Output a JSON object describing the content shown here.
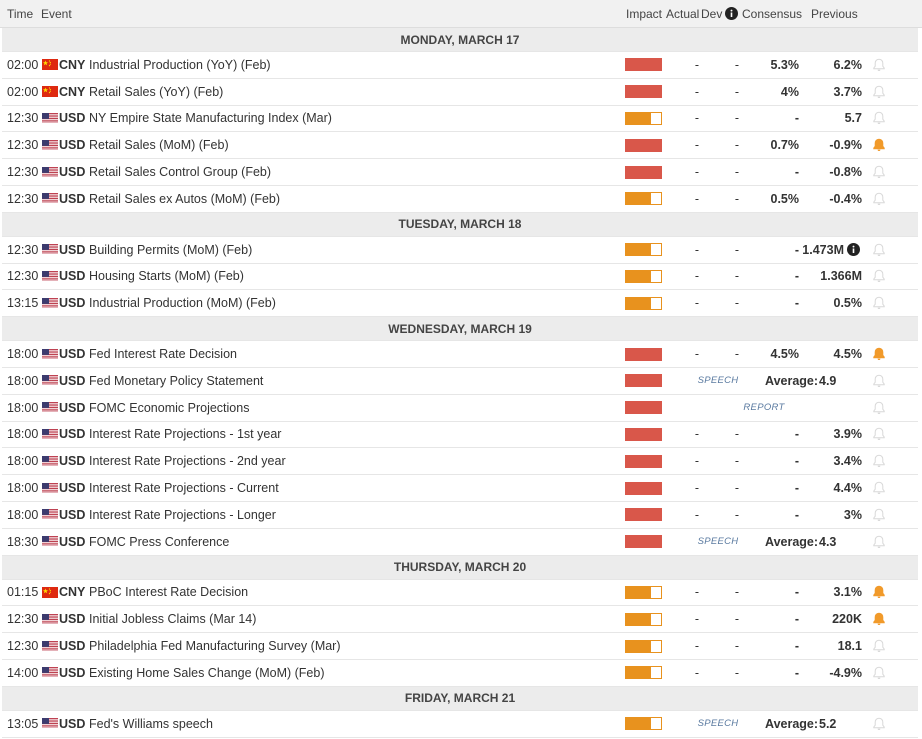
{
  "header": {
    "columns": [
      "Time",
      "Event",
      "Impact",
      "Actual",
      "Dev",
      "Consensus",
      "Previous"
    ]
  },
  "days": [
    {
      "title": "MONDAY, MARCH 17",
      "rows": [
        {
          "time": "02:00",
          "flag": "china",
          "currency": "CNY",
          "event": "Industrial Production (YoY) (Feb)",
          "impact": "high",
          "actual": "-",
          "dev": "-",
          "consensus": "5.3%",
          "previous": "6.2%",
          "alert": false
        },
        {
          "time": "02:00",
          "flag": "china",
          "currency": "CNY",
          "event": "Retail Sales (YoY) (Feb)",
          "impact": "high",
          "actual": "-",
          "dev": "-",
          "consensus": "4%",
          "previous": "3.7%",
          "alert": false
        },
        {
          "time": "12:30",
          "flag": "usa",
          "currency": "USD",
          "event": "NY Empire State Manufacturing Index (Mar)",
          "impact": "medium",
          "actual": "-",
          "dev": "-",
          "consensus": "-",
          "previous": "5.7",
          "alert": false
        },
        {
          "time": "12:30",
          "flag": "usa",
          "currency": "USD",
          "event": "Retail Sales (MoM) (Feb)",
          "impact": "high",
          "actual": "-",
          "dev": "-",
          "consensus": "0.7%",
          "previous": "-0.9%",
          "alert": true
        },
        {
          "time": "12:30",
          "flag": "usa",
          "currency": "USD",
          "event": "Retail Sales Control Group (Feb)",
          "impact": "high",
          "actual": "-",
          "dev": "-",
          "consensus": "-",
          "previous": "-0.8%",
          "alert": false
        },
        {
          "time": "12:30",
          "flag": "usa",
          "currency": "USD",
          "event": "Retail Sales ex Autos (MoM) (Feb)",
          "impact": "medium",
          "actual": "-",
          "dev": "-",
          "consensus": "0.5%",
          "previous": "-0.4%",
          "alert": false
        }
      ]
    },
    {
      "title": "TUESDAY, MARCH 18",
      "rows": [
        {
          "time": "12:30",
          "flag": "usa",
          "currency": "USD",
          "event": "Building Permits (MoM) (Feb)",
          "impact": "medium",
          "actual": "-",
          "dev": "-",
          "consensus": "-",
          "previous": "1.473M",
          "previous_info": true,
          "alert": false
        },
        {
          "time": "12:30",
          "flag": "usa",
          "currency": "USD",
          "event": "Housing Starts (MoM) (Feb)",
          "impact": "medium",
          "actual": "-",
          "dev": "-",
          "consensus": "-",
          "previous": "1.366M",
          "alert": false
        },
        {
          "time": "13:15",
          "flag": "usa",
          "currency": "USD",
          "event": "Industrial Production (MoM) (Feb)",
          "impact": "medium",
          "actual": "-",
          "dev": "-",
          "consensus": "-",
          "previous": "0.5%",
          "alert": false
        }
      ]
    },
    {
      "title": "WEDNESDAY, MARCH 19",
      "rows": [
        {
          "time": "18:00",
          "flag": "usa",
          "currency": "USD",
          "event": "Fed Interest Rate Decision",
          "impact": "high",
          "actual": "-",
          "dev": "-",
          "consensus": "4.5%",
          "previous": "4.5%",
          "alert": true
        },
        {
          "time": "18:00",
          "flag": "usa",
          "currency": "USD",
          "event": "Fed Monetary Policy Statement",
          "impact": "high",
          "tag": "SPEECH",
          "average_label": "Average:",
          "average": 4.9,
          "alert": false
        },
        {
          "time": "18:00",
          "flag": "usa",
          "currency": "USD",
          "event": "FOMC Economic Projections",
          "impact": "high",
          "tag": "REPORT",
          "alert": false
        },
        {
          "time": "18:00",
          "flag": "usa",
          "currency": "USD",
          "event": "Interest Rate Projections - 1st year",
          "impact": "high",
          "actual": "-",
          "dev": "-",
          "consensus": "-",
          "previous": "3.9%",
          "alert": false
        },
        {
          "time": "18:00",
          "flag": "usa",
          "currency": "USD",
          "event": "Interest Rate Projections - 2nd year",
          "impact": "high",
          "actual": "-",
          "dev": "-",
          "consensus": "-",
          "previous": "3.4%",
          "alert": false
        },
        {
          "time": "18:00",
          "flag": "usa",
          "currency": "USD",
          "event": "Interest Rate Projections - Current",
          "impact": "high",
          "actual": "-",
          "dev": "-",
          "consensus": "-",
          "previous": "4.4%",
          "alert": false
        },
        {
          "time": "18:00",
          "flag": "usa",
          "currency": "USD",
          "event": "Interest Rate Projections - Longer",
          "impact": "high",
          "actual": "-",
          "dev": "-",
          "consensus": "-",
          "previous": "3%",
          "alert": false
        },
        {
          "time": "18:30",
          "flag": "usa",
          "currency": "USD",
          "event": "FOMC Press Conference",
          "impact": "high",
          "tag": "SPEECH",
          "average_label": "Average:",
          "average": 4.3,
          "alert": false
        }
      ]
    },
    {
      "title": "THURSDAY, MARCH 20",
      "rows": [
        {
          "time": "01:15",
          "flag": "china",
          "currency": "CNY",
          "event": "PBoC Interest Rate Decision",
          "impact": "medium",
          "actual": "-",
          "dev": "-",
          "consensus": "-",
          "previous": "3.1%",
          "alert": true
        },
        {
          "time": "12:30",
          "flag": "usa",
          "currency": "USD",
          "event": "Initial Jobless Claims (Mar 14)",
          "impact": "medium",
          "actual": "-",
          "dev": "-",
          "consensus": "-",
          "previous": "220K",
          "alert": true
        },
        {
          "time": "12:30",
          "flag": "usa",
          "currency": "USD",
          "event": "Philadelphia Fed Manufacturing Survey (Mar)",
          "impact": "medium",
          "actual": "-",
          "dev": "-",
          "consensus": "-",
          "previous": "18.1",
          "alert": false
        },
        {
          "time": "14:00",
          "flag": "usa",
          "currency": "USD",
          "event": "Existing Home Sales Change (MoM) (Feb)",
          "impact": "medium",
          "actual": "-",
          "dev": "-",
          "consensus": "-",
          "previous": "-4.9%",
          "alert": false
        }
      ]
    },
    {
      "title": "FRIDAY, MARCH 21",
      "rows": [
        {
          "time": "13:05",
          "flag": "usa",
          "currency": "USD",
          "event": "Fed's Williams speech",
          "impact": "medium",
          "tag": "SPEECH",
          "average_label": "Average:",
          "average": 5.2,
          "alert": false
        }
      ]
    }
  ]
}
